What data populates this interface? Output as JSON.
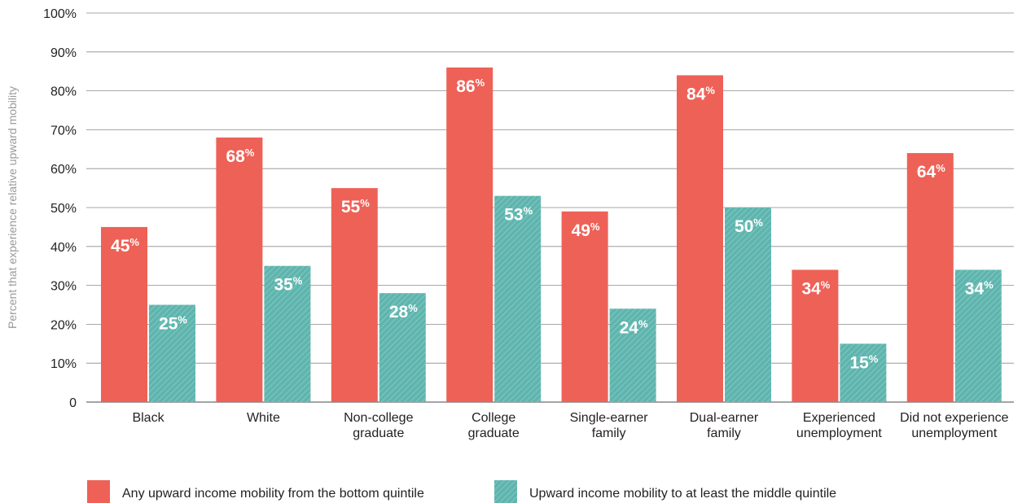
{
  "chart_data": {
    "type": "bar",
    "ylabel": "Percent that experience relative upward mobility",
    "xlabel": "",
    "ylim": [
      0,
      100
    ],
    "y_ticks": [
      "0",
      "10%",
      "20%",
      "30%",
      "40%",
      "50%",
      "60%",
      "70%",
      "80%",
      "90%",
      "100%"
    ],
    "grid": true,
    "legend_position": "bottom",
    "categories": [
      [
        "Black"
      ],
      [
        "White"
      ],
      [
        "Non-college",
        "graduate"
      ],
      [
        "College",
        "graduate"
      ],
      [
        "Single-earner",
        "family"
      ],
      [
        "Dual-earner",
        "family"
      ],
      [
        "Experienced",
        "unemployment"
      ],
      [
        "Did not experience",
        "unemployment"
      ]
    ],
    "series": [
      {
        "name": "Any upward income mobility from the bottom quintile",
        "color": "#ee6157",
        "pattern": "solid",
        "values": [
          45,
          68,
          55,
          86,
          49,
          84,
          34,
          64
        ]
      },
      {
        "name": "Upward income mobility to at least the middle quintile",
        "color": "#5fb5ae",
        "pattern": "hatched",
        "values": [
          25,
          35,
          28,
          53,
          24,
          50,
          15,
          34
        ]
      }
    ],
    "value_suffix": "%"
  }
}
